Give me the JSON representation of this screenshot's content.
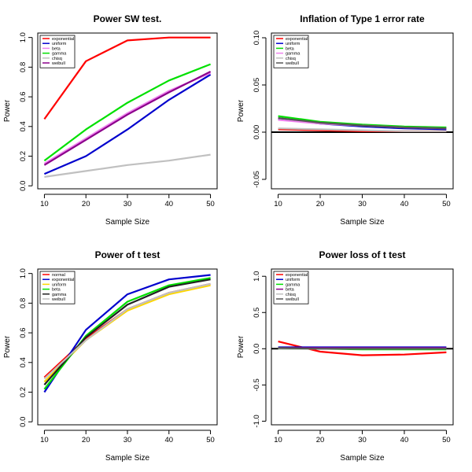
{
  "chart_data": [
    {
      "type": "line",
      "title": "Power SW test.",
      "xlabel": "Sample Size",
      "ylabel": "Power",
      "x": [
        10,
        20,
        30,
        40,
        50
      ],
      "xticks": [
        10,
        20,
        30,
        40,
        50
      ],
      "ylim": [
        -0.02,
        1.03
      ],
      "yticks": [
        0.0,
        0.2,
        0.4,
        0.6,
        0.8,
        1.0
      ],
      "ytick_labels": [
        "0.0",
        "0.2",
        "0.4",
        "0.6",
        "0.8",
        "1.0"
      ],
      "legend_position": "top-left",
      "series": [
        {
          "name": "exponential",
          "color": "#ff0000",
          "values": [
            0.45,
            0.84,
            0.98,
            1.0,
            1.0
          ]
        },
        {
          "name": "uniform",
          "color": "#0000cd",
          "values": [
            0.08,
            0.2,
            0.38,
            0.58,
            0.75
          ]
        },
        {
          "name": "beta",
          "color": "#ee82ee",
          "values": [
            0.15,
            0.32,
            0.49,
            0.64,
            0.76
          ]
        },
        {
          "name": "gamma",
          "color": "#00e000",
          "values": [
            0.17,
            0.38,
            0.56,
            0.71,
            0.82
          ]
        },
        {
          "name": "chisq",
          "color": "#c0c0c0",
          "values": [
            0.06,
            0.1,
            0.14,
            0.17,
            0.21
          ]
        },
        {
          "name": "weibull",
          "color": "#8b008b",
          "values": [
            0.14,
            0.31,
            0.48,
            0.63,
            0.77
          ]
        }
      ]
    },
    {
      "type": "line",
      "title": "Inflation of Type 1 error rate",
      "xlabel": "Sample Size",
      "ylabel": "Power",
      "x": [
        10,
        20,
        30,
        40,
        50
      ],
      "xticks": [
        10,
        20,
        30,
        40,
        50
      ],
      "ylim": [
        -0.06,
        0.105
      ],
      "yticks": [
        -0.05,
        0.0,
        0.05,
        0.1
      ],
      "ytick_labels": [
        "-0.05",
        "0.00",
        "0.05",
        "0.10"
      ],
      "hline": 0,
      "legend_position": "top-left",
      "series": [
        {
          "name": "exponential",
          "color": "#ff0000",
          "values": [
            0.003,
            0.002,
            0.001,
            0.001,
            0.001
          ]
        },
        {
          "name": "uniform",
          "color": "#0000cd",
          "values": [
            0.014,
            0.009,
            0.006,
            0.004,
            0.003
          ]
        },
        {
          "name": "beta",
          "color": "#00e000",
          "values": [
            0.017,
            0.011,
            0.008,
            0.006,
            0.005
          ]
        },
        {
          "name": "gamma",
          "color": "#ee82ee",
          "values": [
            0.013,
            0.009,
            0.007,
            0.005,
            0.004
          ]
        },
        {
          "name": "chisq",
          "color": "#c0c0c0",
          "values": [
            0.004,
            0.003,
            0.002,
            0.001,
            0.001
          ]
        },
        {
          "name": "weibull",
          "color": "#555555",
          "values": [
            0.015,
            0.01,
            0.007,
            0.005,
            0.004
          ]
        }
      ]
    },
    {
      "type": "line",
      "title": "Power of t test",
      "xlabel": "Sample Size",
      "ylabel": "Power",
      "x": [
        10,
        20,
        30,
        40,
        50
      ],
      "xticks": [
        10,
        20,
        30,
        40,
        50
      ],
      "ylim": [
        -0.02,
        1.03
      ],
      "yticks": [
        0.0,
        0.2,
        0.4,
        0.6,
        0.8,
        1.0
      ],
      "ytick_labels": [
        "0.0",
        "0.2",
        "0.4",
        "0.6",
        "0.8",
        "1.0"
      ],
      "legend_position": "top-left",
      "series": [
        {
          "name": "normal",
          "color": "#ff0000",
          "values": [
            0.3,
            0.56,
            0.76,
            0.87,
            0.93
          ]
        },
        {
          "name": "exponential",
          "color": "#0000cd",
          "values": [
            0.2,
            0.62,
            0.86,
            0.96,
            0.99
          ]
        },
        {
          "name": "uniform",
          "color": "#ffd700",
          "values": [
            0.27,
            0.55,
            0.75,
            0.86,
            0.92
          ]
        },
        {
          "name": "beta",
          "color": "#00e000",
          "values": [
            0.22,
            0.58,
            0.81,
            0.92,
            0.97
          ]
        },
        {
          "name": "gamma",
          "color": "#222222",
          "values": [
            0.25,
            0.57,
            0.79,
            0.91,
            0.96
          ]
        },
        {
          "name": "weibull",
          "color": "#c0c0c0",
          "values": [
            0.29,
            0.55,
            0.76,
            0.87,
            0.93
          ]
        }
      ]
    },
    {
      "type": "line",
      "title": "Power loss of t test",
      "xlabel": "Sample Size",
      "ylabel": "Power",
      "x": [
        10,
        20,
        30,
        40,
        50
      ],
      "xticks": [
        10,
        20,
        30,
        40,
        50
      ],
      "ylim": [
        -1.05,
        1.1
      ],
      "yticks": [
        -1.0,
        -0.5,
        0.0,
        0.5,
        1.0
      ],
      "ytick_labels": [
        "-1.0",
        "-0.5",
        "0.0",
        "0.5",
        "1.0"
      ],
      "hline": 0,
      "legend_position": "top-left",
      "series": [
        {
          "name": "exponential",
          "color": "#ff0000",
          "values": [
            0.1,
            -0.04,
            -0.09,
            -0.08,
            -0.05
          ]
        },
        {
          "name": "uniform",
          "color": "#0000cd",
          "values": [
            0.02,
            0.02,
            0.02,
            0.02,
            0.02
          ]
        },
        {
          "name": "gamma",
          "color": "#00e000",
          "values": [
            0.0,
            0.0,
            -0.01,
            -0.01,
            -0.01
          ]
        },
        {
          "name": "beta",
          "color": "#8b008b",
          "values": [
            0.01,
            0.01,
            0.01,
            0.01,
            0.01
          ]
        },
        {
          "name": "chisq",
          "color": "#c0c0c0",
          "values": [
            0.0,
            0.0,
            0.0,
            0.0,
            0.0
          ]
        },
        {
          "name": "weibull",
          "color": "#555555",
          "values": [
            0.01,
            0.0,
            0.0,
            0.0,
            0.0
          ]
        }
      ]
    }
  ]
}
